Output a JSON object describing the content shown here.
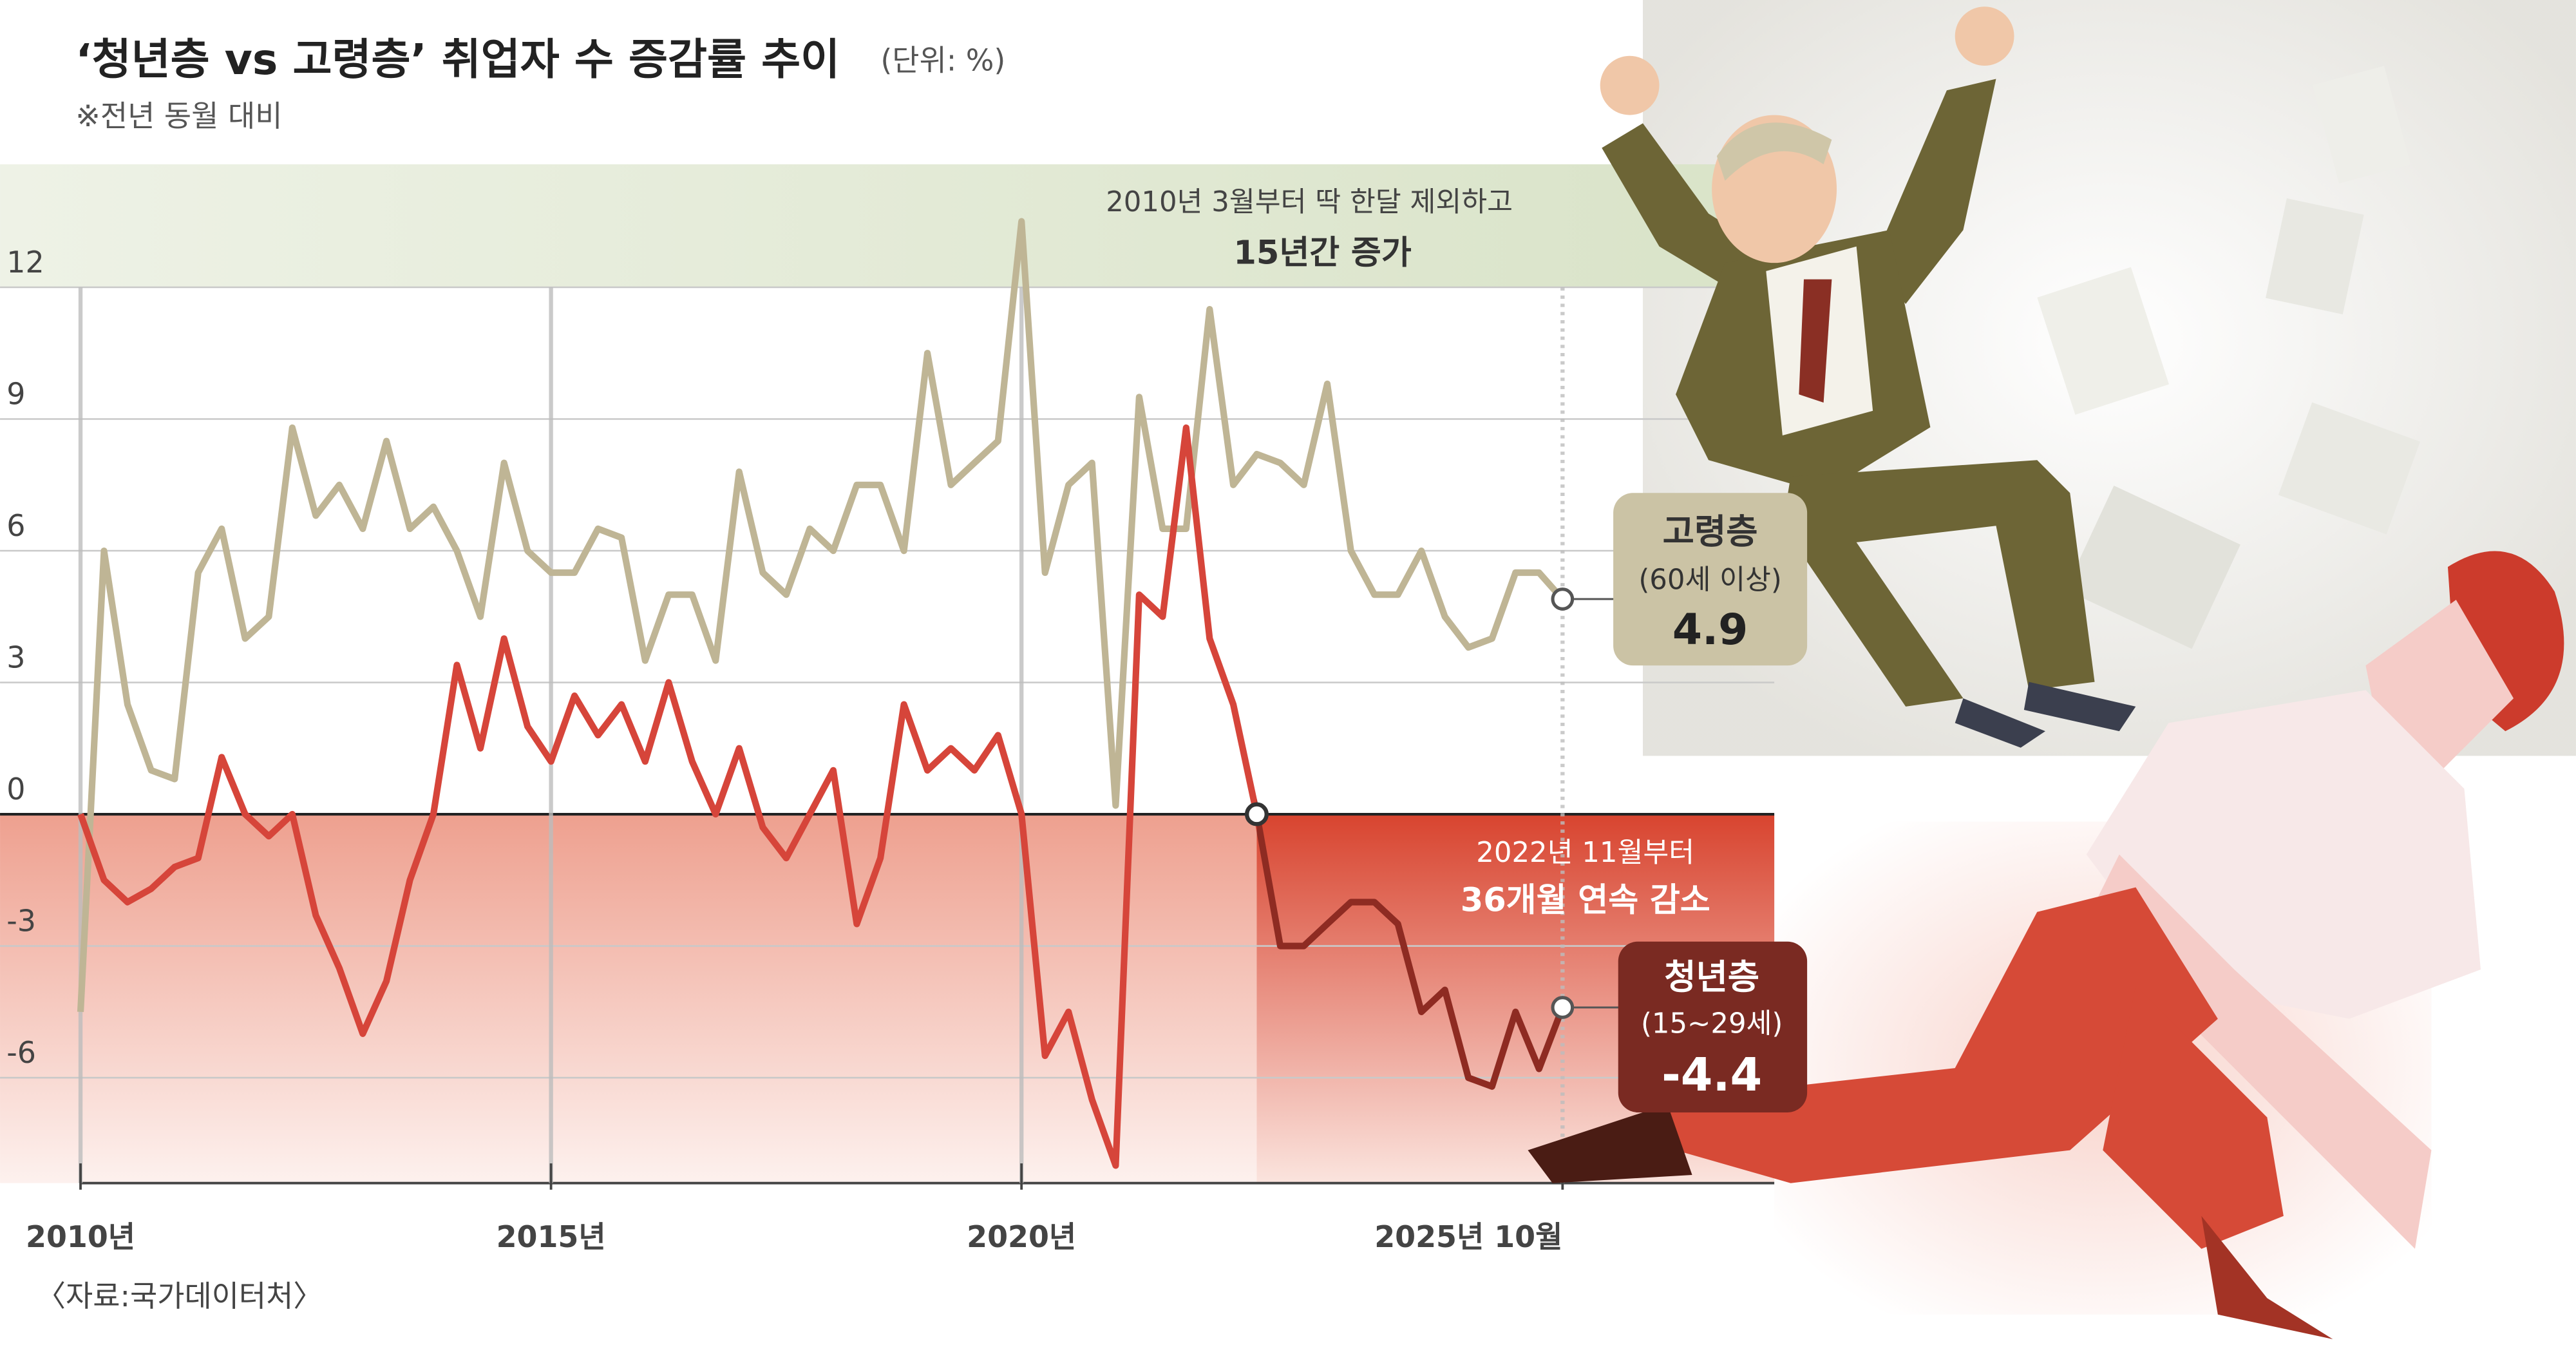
{
  "chart_data": {
    "type": "line",
    "title": "‘청년층 vs 고령층’ 취업자 수 증감률 추이",
    "unit": "(단위: %)",
    "subtitle": "※전년 동월 대비",
    "source": "〈자료:국가데이터처〉",
    "annotations": [
      {
        "lines": [
          "2010년 3월부터 딱 한달 제외하고",
          "15년간 증가"
        ]
      },
      {
        "lines": [
          "2022년 11월부터",
          "36개월 연속 감소"
        ]
      }
    ],
    "x": [
      2010,
      2010.25,
      2010.5,
      2010.75,
      2011,
      2011.25,
      2011.5,
      2011.75,
      2012,
      2012.25,
      2012.5,
      2012.75,
      2013,
      2013.25,
      2013.5,
      2013.75,
      2014,
      2014.25,
      2014.5,
      2014.75,
      2015,
      2015.25,
      2015.5,
      2015.75,
      2016,
      2016.25,
      2016.5,
      2016.75,
      2017,
      2017.25,
      2017.5,
      2017.75,
      2018,
      2018.25,
      2018.5,
      2018.75,
      2019,
      2019.25,
      2019.5,
      2019.75,
      2020,
      2020.25,
      2020.5,
      2020.75,
      2021,
      2021.25,
      2021.5,
      2021.75,
      2022,
      2022.25,
      2022.5,
      2022.75,
      2023,
      2023.25,
      2023.5,
      2023.75,
      2024,
      2024.25,
      2024.5,
      2024.75,
      2025,
      2025.25,
      2025.5,
      2025.75
    ],
    "series": [
      {
        "name": "고령층",
        "group": "(60세 이상)",
        "color": "#bfb595",
        "values": [
          -4.5,
          6,
          2.5,
          1,
          0.8,
          5.5,
          6.5,
          4,
          4.5,
          8.8,
          6.8,
          7.5,
          6.5,
          8.5,
          6.5,
          7,
          6,
          4.5,
          8,
          6,
          5.5,
          5.5,
          6.5,
          6.3,
          3.5,
          5,
          5,
          3.5,
          7.8,
          5.5,
          5,
          6.5,
          6,
          7.5,
          7.5,
          6,
          10.5,
          7.5,
          8,
          8.5,
          13.5,
          5.5,
          7.5,
          8,
          0.2,
          9.5,
          6.5,
          6.5,
          11.5,
          7.5,
          8.2,
          8,
          7.5,
          9.8,
          6,
          5,
          5,
          6,
          4.5,
          3.8,
          4,
          5.5,
          5.5,
          4.9
        ]
      },
      {
        "name": "청년층",
        "group": "(15~29세)",
        "color": "#d6453a",
        "values": [
          0,
          -1.5,
          -2,
          -1.7,
          -1.2,
          -1,
          1.3,
          0,
          -0.5,
          0,
          -2.3,
          -3.5,
          -5,
          -3.8,
          -1.5,
          0,
          3.4,
          1.5,
          4,
          2,
          1.2,
          2.7,
          1.8,
          2.5,
          1.2,
          3,
          1.2,
          0,
          1.5,
          -0.3,
          -1,
          0,
          1,
          -2.5,
          -1,
          2.5,
          1,
          1.5,
          1,
          1.8,
          0,
          -5.5,
          -4.5,
          -6.5,
          -8,
          5,
          4.5,
          8.8,
          4,
          2.5,
          0,
          -3,
          -3,
          -2.5,
          -2,
          -2,
          -2.5,
          -4.5,
          -4,
          -6,
          -6.2,
          -4.5,
          -5.8,
          -4.4
        ]
      }
    ],
    "xlim": [
      2010,
      2028
    ],
    "xticks": [
      {
        "value": 2010,
        "label": "2010년"
      },
      {
        "value": 2015,
        "label": "2015년"
      },
      {
        "value": 2020,
        "label": "2020년"
      },
      {
        "value": 2025.75,
        "label": "2025년 10월"
      }
    ],
    "ylim": [
      -8.4,
      14.8
    ],
    "yticks": [
      12,
      9,
      6,
      3,
      0,
      -3,
      -6
    ],
    "grid": true
  }
}
